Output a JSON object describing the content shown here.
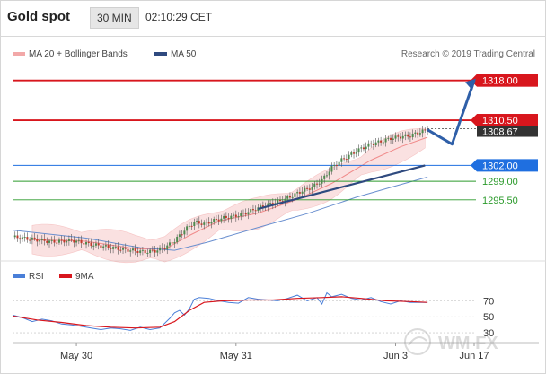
{
  "header": {
    "instrument": "Gold spot",
    "timeframe": "30 MIN",
    "time": "02:10:29 CET"
  },
  "credit": "Research © 2019 Trading Central",
  "colors": {
    "bollinger": "#f2a8a8",
    "ma50": "#2f4a7f",
    "resistance": "#d8161d",
    "pivot": "#1f6fe0",
    "support": "#2b9a2b",
    "rsi": "#4a7fd8",
    "rsi_ma": "#d8161d"
  },
  "watermark": "WM FX",
  "chart_data": [
    {
      "type": "candlestick",
      "title": "Gold spot",
      "legend": [
        {
          "name": "MA 20 + Bollinger Bands",
          "color": "#f2a8a8"
        },
        {
          "name": "MA 50",
          "color": "#2f4a7f"
        }
      ],
      "legend_position": "top-left",
      "x_ticks": [
        "May 30",
        "May 31",
        "Jun 3",
        "Jun 17"
      ],
      "ylim": [
        1285,
        1322
      ],
      "last_price": "1308.67",
      "levels": [
        {
          "value": 1318.0,
          "label": "1318.00",
          "role": "resistance"
        },
        {
          "value": 1310.5,
          "label": "1310.50",
          "role": "resistance"
        },
        {
          "value": 1302.0,
          "label": "1302.00",
          "role": "pivot"
        },
        {
          "value": 1299.0,
          "label": "1299.00",
          "role": "support"
        },
        {
          "value": 1295.5,
          "label": "1295.50",
          "role": "support"
        }
      ],
      "path": [
        [
          0,
          1288.5
        ],
        [
          8,
          1288.1
        ],
        [
          16,
          1287.6
        ],
        [
          24,
          1287.9
        ],
        [
          30,
          1287.3
        ],
        [
          36,
          1286.8
        ],
        [
          42,
          1286.4
        ],
        [
          48,
          1286.0
        ],
        [
          54,
          1285.7
        ],
        [
          58,
          1285.9
        ],
        [
          62,
          1286.5
        ],
        [
          66,
          1287.8
        ],
        [
          70,
          1289.8
        ],
        [
          74,
          1291.3
        ],
        [
          78,
          1291.0
        ],
        [
          82,
          1291.6
        ],
        [
          86,
          1292.1
        ],
        [
          90,
          1292.4
        ],
        [
          94,
          1292.9
        ],
        [
          98,
          1293.6
        ],
        [
          102,
          1294.3
        ],
        [
          106,
          1294.9
        ],
        [
          110,
          1295.4
        ],
        [
          114,
          1296.3
        ],
        [
          118,
          1297.2
        ],
        [
          122,
          1297.9
        ],
        [
          126,
          1299.2
        ],
        [
          130,
          1301.6
        ],
        [
          134,
          1303.0
        ],
        [
          138,
          1304.1
        ],
        [
          142,
          1305.2
        ],
        [
          146,
          1306.0
        ],
        [
          150,
          1306.5
        ],
        [
          154,
          1307.1
        ],
        [
          158,
          1307.4
        ],
        [
          162,
          1307.6
        ],
        [
          166,
          1308.3
        ],
        [
          169,
          1308.7
        ]
      ],
      "forecast": [
        [
          169,
          1308.7
        ],
        [
          179,
          1306.0
        ],
        [
          188,
          1318.0
        ]
      ],
      "ma20": [
        [
          8,
          1288.0
        ],
        [
          30,
          1287.7
        ],
        [
          50,
          1286.3
        ],
        [
          62,
          1286.2
        ],
        [
          72,
          1288.8
        ],
        [
          84,
          1291.5
        ],
        [
          100,
          1293.0
        ],
        [
          116,
          1295.6
        ],
        [
          130,
          1298.6
        ],
        [
          146,
          1303.0
        ],
        [
          158,
          1305.5
        ],
        [
          169,
          1307.3
        ]
      ],
      "ma50": [
        [
          0,
          1289.8
        ],
        [
          30,
          1288.3
        ],
        [
          52,
          1286.5
        ],
        [
          66,
          1286.0
        ],
        [
          80,
          1287.6
        ],
        [
          100,
          1290.3
        ],
        [
          120,
          1292.9
        ],
        [
          140,
          1296.0
        ],
        [
          155,
          1298.0
        ],
        [
          169,
          1299.8
        ]
      ],
      "trendline": [
        [
          100,
          1293.8
        ],
        [
          168,
          1302.0
        ]
      ]
    },
    {
      "type": "line",
      "legend": [
        {
          "name": "RSI",
          "color": "#4a7fd8"
        },
        {
          "name": "9MA",
          "color": "#d8161d"
        }
      ],
      "ylim": [
        20,
        85
      ],
      "y_ticks": [
        70,
        50,
        30
      ],
      "series": [
        {
          "name": "RSI",
          "values": [
            [
              0,
              52
            ],
            [
              4,
              49
            ],
            [
              8,
              44
            ],
            [
              12,
              47
            ],
            [
              16,
              45
            ],
            [
              20,
              41
            ],
            [
              24,
              40
            ],
            [
              28,
              38
            ],
            [
              32,
              36
            ],
            [
              36,
              34
            ],
            [
              40,
              36
            ],
            [
              44,
              35
            ],
            [
              48,
              33
            ],
            [
              52,
              37
            ],
            [
              56,
              34
            ],
            [
              60,
              36
            ],
            [
              64,
              48
            ],
            [
              66,
              55
            ],
            [
              68,
              58
            ],
            [
              70,
              52
            ],
            [
              72,
              60
            ],
            [
              74,
              72
            ],
            [
              76,
              74
            ],
            [
              80,
              73
            ],
            [
              84,
              70
            ],
            [
              88,
              68
            ],
            [
              92,
              67
            ],
            [
              96,
              74
            ],
            [
              100,
              72
            ],
            [
              104,
              71
            ],
            [
              108,
              70
            ],
            [
              112,
              73
            ],
            [
              116,
              77
            ],
            [
              120,
              70
            ],
            [
              124,
              74
            ],
            [
              126,
              66
            ],
            [
              128,
              80
            ],
            [
              130,
              75
            ],
            [
              134,
              78
            ],
            [
              138,
              73
            ],
            [
              142,
              71
            ],
            [
              146,
              74
            ],
            [
              150,
              69
            ],
            [
              154,
              66
            ],
            [
              158,
              70
            ],
            [
              162,
              68
            ],
            [
              169,
              68
            ]
          ]
        },
        {
          "name": "9MA",
          "values": [
            [
              0,
              51
            ],
            [
              10,
              46
            ],
            [
              20,
              43
            ],
            [
              30,
              39
            ],
            [
              40,
              37
            ],
            [
              50,
              36
            ],
            [
              60,
              37
            ],
            [
              66,
              44
            ],
            [
              72,
              58
            ],
            [
              78,
              68
            ],
            [
              86,
              70
            ],
            [
              96,
              71
            ],
            [
              106,
              71
            ],
            [
              116,
              73
            ],
            [
              126,
              74
            ],
            [
              134,
              75
            ],
            [
              142,
              73
            ],
            [
              152,
              70
            ],
            [
              162,
              69
            ],
            [
              169,
              68
            ]
          ]
        }
      ]
    }
  ]
}
